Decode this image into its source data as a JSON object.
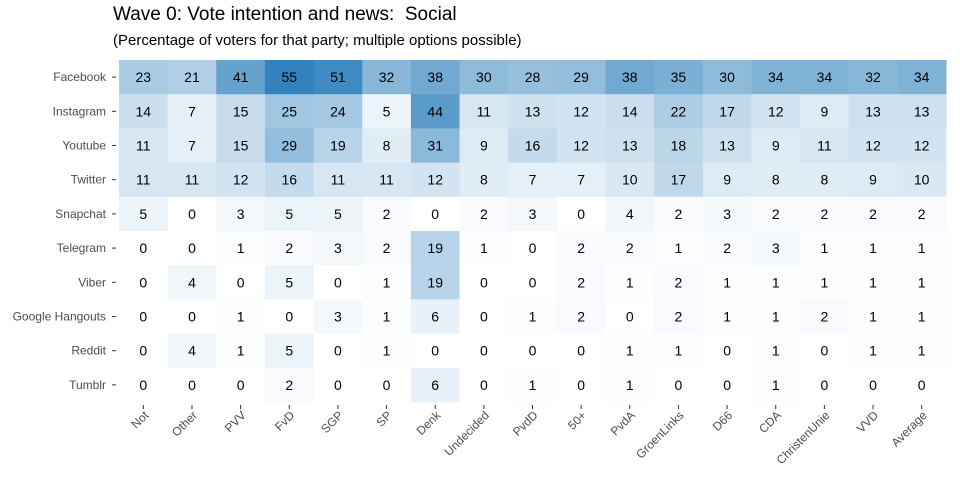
{
  "chart_data": {
    "type": "heatmap",
    "title": "Wave 0: Vote intention and news:  Social",
    "subtitle": "(Percentage of voters for that party; multiple options possible)",
    "xlabel": "",
    "ylabel": "",
    "categories": [
      "Not",
      "Other",
      "PVV",
      "FvD",
      "SGP",
      "SP",
      "Denk",
      "Undecided",
      "PvdD",
      "50+",
      "PvdA",
      "GroenLinks",
      "D66",
      "CDA",
      "ChristenUnie",
      "VVD",
      "Average"
    ],
    "rows": [
      "Facebook",
      "Instagram",
      "Youtube",
      "Twitter",
      "Snapchat",
      "Telegram",
      "Viber",
      "Google Hangouts",
      "Reddit",
      "Tumblr"
    ],
    "values": [
      [
        23,
        21,
        41,
        55,
        51,
        32,
        38,
        30,
        28,
        29,
        38,
        35,
        30,
        34,
        34,
        32,
        34
      ],
      [
        14,
        7,
        15,
        25,
        24,
        5,
        44,
        11,
        13,
        12,
        14,
        22,
        17,
        12,
        9,
        13,
        13
      ],
      [
        11,
        7,
        15,
        29,
        19,
        8,
        31,
        9,
        16,
        12,
        13,
        18,
        13,
        9,
        11,
        12,
        12
      ],
      [
        11,
        11,
        12,
        16,
        11,
        11,
        12,
        8,
        7,
        7,
        10,
        17,
        9,
        8,
        8,
        9,
        10
      ],
      [
        5,
        0,
        3,
        5,
        5,
        2,
        0,
        2,
        3,
        0,
        4,
        2,
        3,
        2,
        2,
        2,
        2
      ],
      [
        0,
        0,
        1,
        2,
        3,
        2,
        19,
        1,
        0,
        2,
        2,
        1,
        2,
        3,
        1,
        1,
        1
      ],
      [
        0,
        4,
        0,
        5,
        0,
        1,
        19,
        0,
        0,
        2,
        1,
        2,
        1,
        1,
        1,
        1,
        1
      ],
      [
        0,
        0,
        1,
        0,
        3,
        1,
        6,
        0,
        1,
        2,
        0,
        2,
        1,
        1,
        2,
        1,
        1
      ],
      [
        0,
        4,
        1,
        5,
        0,
        1,
        0,
        0,
        0,
        0,
        1,
        1,
        0,
        1,
        0,
        1,
        1
      ],
      [
        0,
        0,
        0,
        2,
        0,
        0,
        6,
        0,
        1,
        0,
        1,
        0,
        0,
        1,
        0,
        0,
        0
      ]
    ],
    "color_scale": {
      "low": "#ffffff",
      "high": "#3182bd",
      "min": 0,
      "max": 55
    },
    "grid": false,
    "legend": "none"
  }
}
